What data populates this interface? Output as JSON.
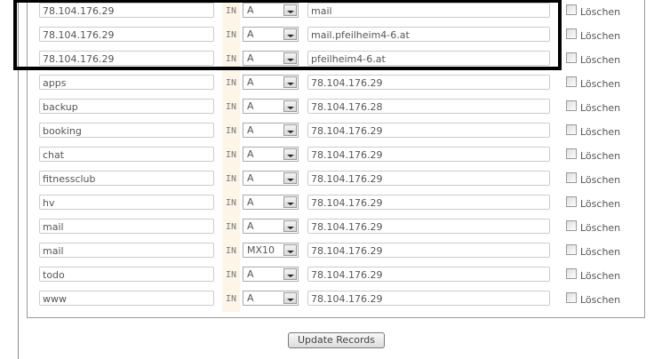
{
  "records": [
    {
      "name": "78.104.176.29",
      "class": "IN",
      "type": "A",
      "value": "mail",
      "delete_label": "Löschen"
    },
    {
      "name": "78.104.176.29",
      "class": "IN",
      "type": "A",
      "value": "mail.pfeilheim4-6.at",
      "delete_label": "Löschen"
    },
    {
      "name": "78.104.176.29",
      "class": "IN",
      "type": "A",
      "value": "pfeilheim4-6.at",
      "delete_label": "Löschen"
    },
    {
      "name": "apps",
      "class": "IN",
      "type": "A",
      "value": "78.104.176.29",
      "delete_label": "Löschen"
    },
    {
      "name": "backup",
      "class": "IN",
      "type": "A",
      "value": "78.104.176.28",
      "delete_label": "Löschen"
    },
    {
      "name": "booking",
      "class": "IN",
      "type": "A",
      "value": "78.104.176.29",
      "delete_label": "Löschen"
    },
    {
      "name": "chat",
      "class": "IN",
      "type": "A",
      "value": "78.104.176.29",
      "delete_label": "Löschen"
    },
    {
      "name": "fitnessclub",
      "class": "IN",
      "type": "A",
      "value": "78.104.176.29",
      "delete_label": "Löschen"
    },
    {
      "name": "hv",
      "class": "IN",
      "type": "A",
      "value": "78.104.176.29",
      "delete_label": "Löschen"
    },
    {
      "name": "mail",
      "class": "IN",
      "type": "A",
      "value": "78.104.176.29",
      "delete_label": "Löschen"
    },
    {
      "name": "mail",
      "class": "IN",
      "type": "MX10",
      "value": "78.104.176.29",
      "delete_label": "Löschen"
    },
    {
      "name": "todo",
      "class": "IN",
      "type": "A",
      "value": "78.104.176.29",
      "delete_label": "Löschen"
    },
    {
      "name": "www",
      "class": "IN",
      "type": "A",
      "value": "78.104.176.29",
      "delete_label": "Löschen"
    }
  ],
  "update_button": "Update Records",
  "highlight_color": "#000000"
}
